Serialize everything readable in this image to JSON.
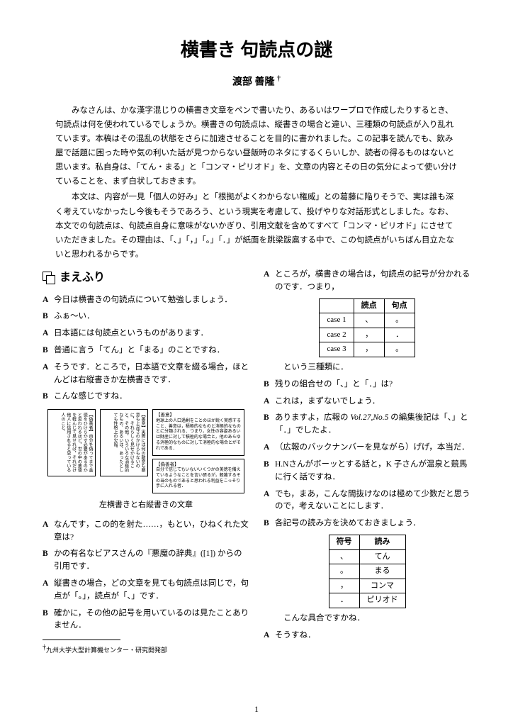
{
  "title": "横書き 句読点の謎",
  "author": "渡部 善隆",
  "dagger": "†",
  "abstract": {
    "p1": "みなさんは、かな漢字混じりの横書き文章をペンで書いたり、あるいはワープロで作成したりするとき、句読点は何を使われているでしょうか。横書きの句読点は、縦書きの場合と違い、三種類の句読点が入り乱れています。本稿はその混乱の状態をさらに加速させることを目的に書かれました。この記事を読んでも、飲み屋で話題に困った時や気の利いた話が見つからない昼飯時のネタにするくらいしか、読者の得るものはないと思います。私自身は、「てん・まる」と「コンマ・ピリオド」を、文章の内容とその日の気分によって使い分けていることを、まず白状しておきます。",
    "p2": "本文は、内容が一見「個人の好み」と「根拠がよくわからない権威」との葛藤に陥りそうで、実は誰も深く考えていなかったし今後もそうであろう、という現実を考慮して、投げやりな対話形式としました。なお、本文での句読点は、句読点自身に意味がないかぎり、引用文献を含めてすべて「コンマ・ピリオド」にさせていただきました。その理由は、「、」「，」「。」「．」が紙面を跳梁跋扈する中で、この句読点がいちばん目立たないと思われるからです。"
  },
  "section1": "まえふり",
  "left": [
    {
      "s": "A",
      "t": "今日は横書きの句読点について勉強しましょう．"
    },
    {
      "s": "B",
      "t": "ふぁ〜い．"
    },
    {
      "s": "A",
      "t": "日本語には句読点というものがあります．"
    },
    {
      "s": "B",
      "t": "普通に言う「てん」と「まる」のことですね．"
    },
    {
      "s": "A",
      "t": "そうです．ところで，日本語で文章を綴る場合，ほとんどは右縦書きか左横書きです．"
    },
    {
      "s": "B",
      "t": "こんな感じですね．"
    }
  ],
  "left2": [
    {
      "s": "A",
      "t": "なんです，この的を射た……，もとい，ひねくれた文章は?"
    },
    {
      "s": "B",
      "t": "かの有名なビアスさんの『悪魔の辞典』([1]) からの引用です．"
    },
    {
      "s": "A",
      "t": "縦書きの場合，どの文章を見ても句読点は同じで，句点が「。」，読点が「、」です．"
    },
    {
      "s": "B",
      "t": "確かに，その他の記号を用いているのは見たことありません．"
    }
  ],
  "fig": {
    "v1": "【偽善者】自分を偽ってまで美徳をひけらかす必要があるのかと思われるほど，世の中の悪徳を軽んじて見せれば，それだけ他人に信用されると思っている人のこと．",
    "v2": "【善意】実際には何の敵意も悪意も上品さのかけらもないのに，それらしく見せかけること．その他，いろいろな消極的なもの．あるいは，あったとしても性格上の欠陥．",
    "h1hd": "【善意】",
    "h1": "地球上の人口過剰をことのほか鋭く実感すること．善意は，積極的なものと消極的なものとに分類される．つまり，女性の容姿あるいは財産に対して積極的な場合と，他のあらゆる消極的なものに対して消極的な場合とがそれである．",
    "h2hd": "【偽善者】",
    "h2": "自分で信じてもいないいくつかの美徳を備えているようなことを言い張るが，軽蔑するその当のものであると思われる利益をこっそり手に入れる者．",
    "caption": "左横書きと右縦書きの文章"
  },
  "footnote": "九州大学大型計算機センター・研究開発部",
  "right": [
    {
      "s": "A",
      "t": "ところが，横書きの場合は，句読点の記号が分かれるのです．つまり，"
    }
  ],
  "table1": {
    "h1": "読点",
    "h2": "句点",
    "rows": [
      {
        "c": "case 1",
        "a": "、",
        "b": "。"
      },
      {
        "c": "case 2",
        "a": "，",
        "b": "．"
      },
      {
        "c": "case 3",
        "a": "，",
        "b": "。"
      }
    ]
  },
  "right2": [
    {
      "s": "",
      "t": "という三種類に．"
    },
    {
      "s": "B",
      "t": "残りの組合せの「、」と「．」は?"
    },
    {
      "s": "A",
      "t": "これは，まずないでしょう．"
    },
    {
      "s": "B",
      "t": "ありますよ，広報の Vol.27,No.5 の編集後記は「、」と「．」でしたよ．"
    },
    {
      "s": "A",
      "t": "（広報のバックナンバーを見ながら）げげ，本当だ．"
    },
    {
      "s": "B",
      "t": "H.Nさんがボーッとする話と，K 子さんが温泉と競馬に行く話ですね．"
    },
    {
      "s": "A",
      "t": "でも，まあ，こんな間抜けなのは極めて少数だと思うので，考えないことにします．"
    },
    {
      "s": "B",
      "t": "各記号の読み方を決めておきましょう．"
    }
  ],
  "table2": {
    "h1": "符号",
    "h2": "読み",
    "rows": [
      {
        "a": "、",
        "b": "てん"
      },
      {
        "a": "。",
        "b": "まる"
      },
      {
        "a": "，",
        "b": "コンマ"
      },
      {
        "a": "．",
        "b": "ピリオド"
      }
    ]
  },
  "right3": [
    {
      "s": "",
      "t": "こんな具合ですかね．"
    },
    {
      "s": "A",
      "t": "そうすね．"
    }
  ],
  "pagenum": "1"
}
